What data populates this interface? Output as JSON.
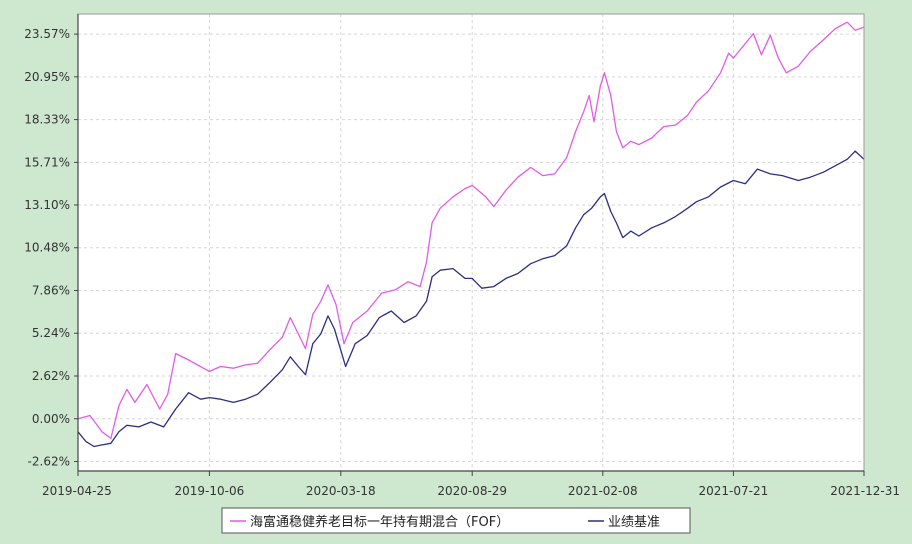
{
  "colors": {
    "background": "#cde8cf",
    "plot_background": "#ffffff",
    "fund_line": "#e15ce7",
    "benchmark_line": "#2e2e83",
    "grid": "#d5d5d5",
    "axis": "#444444"
  },
  "chart_data": {
    "type": "line",
    "title": "",
    "xlabel": "",
    "ylabel": "",
    "x_ticks": [
      "2019-04-25",
      "2019-10-06",
      "2020-03-18",
      "2020-08-29",
      "2021-02-08",
      "2021-07-21",
      "2021-12-31"
    ],
    "y_ticks": [
      "-2.62%",
      "0.00%",
      "2.62%",
      "5.24%",
      "7.86%",
      "10.48%",
      "13.10%",
      "15.71%",
      "18.33%",
      "20.95%",
      "23.57%"
    ],
    "ylim": [
      -3.2,
      24.8
    ],
    "xlim": [
      "2019-04-25",
      "2021-12-31"
    ],
    "grid": true,
    "legend_position": "bottom",
    "series": [
      {
        "name": "海富通稳健养老目标一年持有期混合（FOF）",
        "color": "#e15ce7",
        "points": [
          [
            "2019-04-25",
            0.0
          ],
          [
            "2019-05-10",
            0.2
          ],
          [
            "2019-05-25",
            -0.8
          ],
          [
            "2019-06-05",
            -1.2
          ],
          [
            "2019-06-15",
            0.8
          ],
          [
            "2019-06-25",
            1.8
          ],
          [
            "2019-07-05",
            1.0
          ],
          [
            "2019-07-20",
            2.1
          ],
          [
            "2019-08-05",
            0.6
          ],
          [
            "2019-08-15",
            1.5
          ],
          [
            "2019-08-25",
            4.0
          ],
          [
            "2019-09-10",
            3.6
          ],
          [
            "2019-10-06",
            2.9
          ],
          [
            "2019-10-20",
            3.2
          ],
          [
            "2019-11-05",
            3.1
          ],
          [
            "2019-11-20",
            3.3
          ],
          [
            "2019-12-05",
            3.4
          ],
          [
            "2019-12-20",
            4.2
          ],
          [
            "2020-01-05",
            5.0
          ],
          [
            "2020-01-15",
            6.2
          ],
          [
            "2020-01-25",
            5.2
          ],
          [
            "2020-02-03",
            4.3
          ],
          [
            "2020-02-12",
            6.4
          ],
          [
            "2020-02-22",
            7.2
          ],
          [
            "2020-03-02",
            8.2
          ],
          [
            "2020-03-12",
            7.0
          ],
          [
            "2020-03-22",
            4.6
          ],
          [
            "2020-04-02",
            5.9
          ],
          [
            "2020-04-20",
            6.6
          ],
          [
            "2020-05-08",
            7.7
          ],
          [
            "2020-05-25",
            7.9
          ],
          [
            "2020-06-10",
            8.4
          ],
          [
            "2020-06-25",
            8.1
          ],
          [
            "2020-07-03",
            9.6
          ],
          [
            "2020-07-10",
            12.0
          ],
          [
            "2020-07-20",
            12.9
          ],
          [
            "2020-08-05",
            13.6
          ],
          [
            "2020-08-20",
            14.1
          ],
          [
            "2020-08-29",
            14.3
          ],
          [
            "2020-09-15",
            13.6
          ],
          [
            "2020-09-25",
            13.0
          ],
          [
            "2020-10-10",
            14.0
          ],
          [
            "2020-10-25",
            14.8
          ],
          [
            "2020-11-10",
            15.4
          ],
          [
            "2020-11-25",
            14.9
          ],
          [
            "2020-12-10",
            15.0
          ],
          [
            "2020-12-25",
            16.0
          ],
          [
            "2021-01-05",
            17.6
          ],
          [
            "2021-01-15",
            18.8
          ],
          [
            "2021-01-22",
            19.8
          ],
          [
            "2021-01-28",
            18.2
          ],
          [
            "2021-02-05",
            20.4
          ],
          [
            "2021-02-10",
            21.2
          ],
          [
            "2021-02-18",
            19.8
          ],
          [
            "2021-02-25",
            17.6
          ],
          [
            "2021-03-05",
            16.6
          ],
          [
            "2021-03-15",
            17.0
          ],
          [
            "2021-03-25",
            16.8
          ],
          [
            "2021-04-10",
            17.2
          ],
          [
            "2021-04-25",
            17.9
          ],
          [
            "2021-05-10",
            18.0
          ],
          [
            "2021-05-25",
            18.6
          ],
          [
            "2021-06-05",
            19.4
          ],
          [
            "2021-06-20",
            20.1
          ],
          [
            "2021-07-05",
            21.2
          ],
          [
            "2021-07-15",
            22.4
          ],
          [
            "2021-07-21",
            22.1
          ],
          [
            "2021-08-05",
            23.0
          ],
          [
            "2021-08-15",
            23.6
          ],
          [
            "2021-08-25",
            22.3
          ],
          [
            "2021-09-05",
            23.5
          ],
          [
            "2021-09-15",
            22.1
          ],
          [
            "2021-09-25",
            21.2
          ],
          [
            "2021-10-10",
            21.6
          ],
          [
            "2021-10-25",
            22.5
          ],
          [
            "2021-11-10",
            23.2
          ],
          [
            "2021-11-25",
            23.9
          ],
          [
            "2021-12-10",
            24.3
          ],
          [
            "2021-12-20",
            23.8
          ],
          [
            "2021-12-31",
            24.0
          ]
        ]
      },
      {
        "name": "业绩基准",
        "color": "#2e2e83",
        "points": [
          [
            "2019-04-25",
            -0.8
          ],
          [
            "2019-05-05",
            -1.4
          ],
          [
            "2019-05-15",
            -1.7
          ],
          [
            "2019-05-25",
            -1.6
          ],
          [
            "2019-06-05",
            -1.5
          ],
          [
            "2019-06-15",
            -0.8
          ],
          [
            "2019-06-25",
            -0.4
          ],
          [
            "2019-07-10",
            -0.5
          ],
          [
            "2019-07-25",
            -0.2
          ],
          [
            "2019-08-10",
            -0.5
          ],
          [
            "2019-08-25",
            0.6
          ],
          [
            "2019-09-10",
            1.6
          ],
          [
            "2019-09-25",
            1.2
          ],
          [
            "2019-10-06",
            1.3
          ],
          [
            "2019-10-20",
            1.2
          ],
          [
            "2019-11-05",
            1.0
          ],
          [
            "2019-11-20",
            1.2
          ],
          [
            "2019-12-05",
            1.5
          ],
          [
            "2019-12-20",
            2.2
          ],
          [
            "2020-01-05",
            3.0
          ],
          [
            "2020-01-15",
            3.8
          ],
          [
            "2020-01-25",
            3.2
          ],
          [
            "2020-02-03",
            2.7
          ],
          [
            "2020-02-12",
            4.6
          ],
          [
            "2020-02-22",
            5.2
          ],
          [
            "2020-03-02",
            6.3
          ],
          [
            "2020-03-10",
            5.5
          ],
          [
            "2020-03-18",
            4.2
          ],
          [
            "2020-03-24",
            3.2
          ],
          [
            "2020-04-05",
            4.6
          ],
          [
            "2020-04-20",
            5.1
          ],
          [
            "2020-05-05",
            6.2
          ],
          [
            "2020-05-20",
            6.6
          ],
          [
            "2020-06-05",
            5.9
          ],
          [
            "2020-06-20",
            6.3
          ],
          [
            "2020-07-03",
            7.2
          ],
          [
            "2020-07-10",
            8.7
          ],
          [
            "2020-07-20",
            9.1
          ],
          [
            "2020-08-05",
            9.2
          ],
          [
            "2020-08-20",
            8.6
          ],
          [
            "2020-08-29",
            8.6
          ],
          [
            "2020-09-10",
            8.0
          ],
          [
            "2020-09-25",
            8.1
          ],
          [
            "2020-10-10",
            8.6
          ],
          [
            "2020-10-25",
            8.9
          ],
          [
            "2020-11-10",
            9.5
          ],
          [
            "2020-11-25",
            9.8
          ],
          [
            "2020-12-10",
            10.0
          ],
          [
            "2020-12-25",
            10.6
          ],
          [
            "2021-01-05",
            11.7
          ],
          [
            "2021-01-15",
            12.5
          ],
          [
            "2021-01-25",
            12.9
          ],
          [
            "2021-02-05",
            13.6
          ],
          [
            "2021-02-10",
            13.8
          ],
          [
            "2021-02-18",
            12.7
          ],
          [
            "2021-02-25",
            12.0
          ],
          [
            "2021-03-05",
            11.1
          ],
          [
            "2021-03-15",
            11.5
          ],
          [
            "2021-03-25",
            11.2
          ],
          [
            "2021-04-10",
            11.7
          ],
          [
            "2021-04-25",
            12.0
          ],
          [
            "2021-05-10",
            12.4
          ],
          [
            "2021-05-25",
            12.9
          ],
          [
            "2021-06-05",
            13.3
          ],
          [
            "2021-06-20",
            13.6
          ],
          [
            "2021-07-05",
            14.2
          ],
          [
            "2021-07-21",
            14.6
          ],
          [
            "2021-08-05",
            14.4
          ],
          [
            "2021-08-20",
            15.3
          ],
          [
            "2021-09-05",
            15.0
          ],
          [
            "2021-09-20",
            14.9
          ],
          [
            "2021-10-10",
            14.6
          ],
          [
            "2021-10-25",
            14.8
          ],
          [
            "2021-11-10",
            15.1
          ],
          [
            "2021-11-25",
            15.5
          ],
          [
            "2021-12-10",
            15.9
          ],
          [
            "2021-12-20",
            16.4
          ],
          [
            "2021-12-31",
            15.9
          ]
        ]
      }
    ]
  }
}
